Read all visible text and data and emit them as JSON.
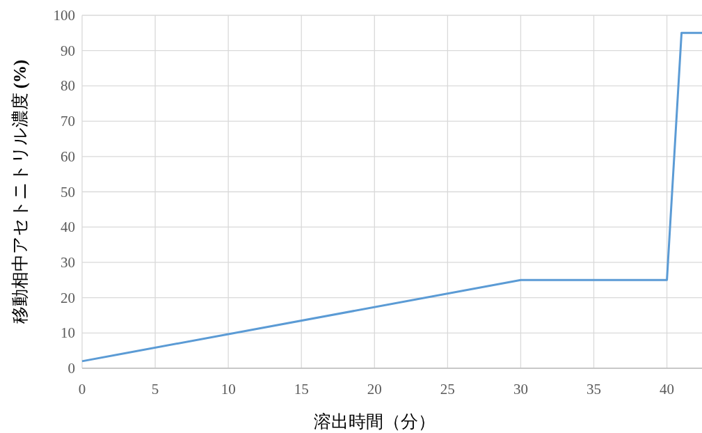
{
  "chart_data": {
    "type": "line",
    "xlabel": "溶出時間（分）",
    "ylabel": "移動相中アセトニトリル濃度 **(%)**",
    "x": [
      0,
      30,
      40,
      41,
      42.4
    ],
    "series": [
      {
        "color": "#5b9bd5",
        "values": [
          2,
          25,
          25,
          95,
          95
        ]
      }
    ],
    "xlim": [
      0,
      42.4
    ],
    "xticks": [
      0,
      5,
      10,
      15,
      20,
      25,
      30,
      35,
      40
    ],
    "ylim": [
      0,
      100
    ],
    "yticks": [
      0,
      10,
      20,
      30,
      40,
      50,
      60,
      70,
      80,
      90,
      100
    ],
    "grid": true,
    "marker": "none",
    "line_style": "solid"
  }
}
